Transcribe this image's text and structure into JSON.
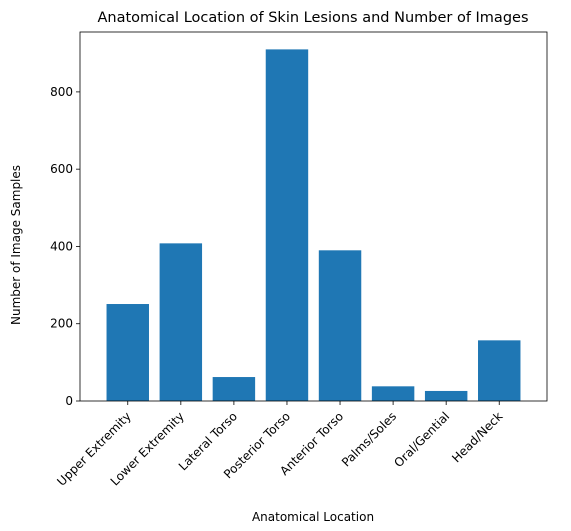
{
  "chart_data": {
    "type": "bar",
    "title": "Anatomical Location of Skin Lesions and Number of Images",
    "xlabel": "Anatomical Location",
    "ylabel": "Number of Image Samples",
    "categories": [
      "Upper Extremity",
      "Lower Extremity",
      "Lateral Torso",
      "Posterior Torso",
      "Anterior Torso",
      "Palms/Soles",
      "Oral/Gential",
      "Head/Neck"
    ],
    "values": [
      251,
      408,
      62,
      910,
      390,
      38,
      26,
      157
    ],
    "ylim": [
      0,
      955
    ],
    "yticks": [
      0,
      200,
      400,
      600,
      800
    ],
    "bar_color": "#1f77b4",
    "grid": false,
    "legend": "none"
  }
}
